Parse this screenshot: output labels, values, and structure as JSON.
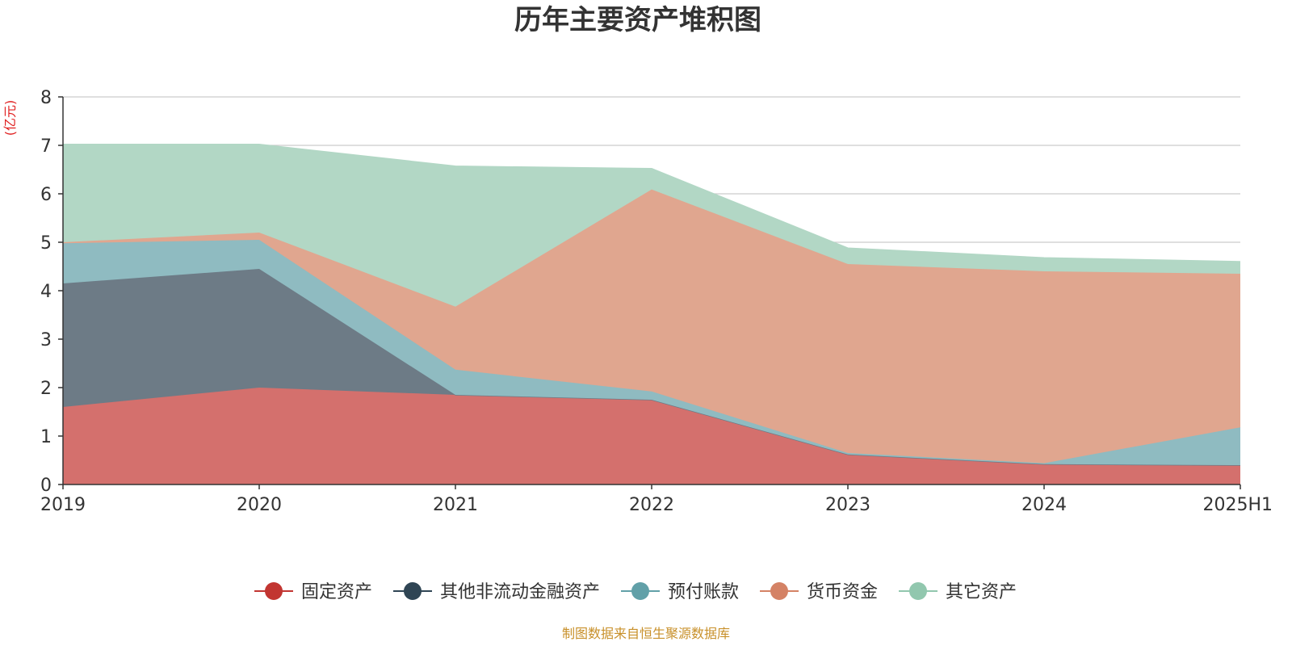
{
  "chart_data": {
    "type": "area",
    "stacked": true,
    "title": "历年主要资产堆积图",
    "ylabel": "(亿元)",
    "xlabel": "",
    "categories": [
      "2019",
      "2020",
      "2021",
      "2022",
      "2023",
      "2024",
      "2025H1"
    ],
    "ylim": [
      0,
      8
    ],
    "yticks": [
      "0",
      "1",
      "2",
      "3",
      "4",
      "5",
      "6",
      "7",
      "8"
    ],
    "grid": true,
    "legend_position": "bottom",
    "series": [
      {
        "name": "固定资产",
        "color": "#c23531",
        "fill": "#d4706d",
        "values": [
          1.6,
          2.0,
          1.85,
          1.75,
          0.62,
          0.42,
          0.4
        ]
      },
      {
        "name": "其他非流动金融资产",
        "color": "#2f4554",
        "fill": "#6d7b86",
        "values": [
          2.55,
          2.45,
          0.0,
          0.0,
          0.0,
          0.0,
          0.0
        ]
      },
      {
        "name": "预付账款",
        "color": "#61a0a8",
        "fill": "#8fbbc1",
        "values": [
          0.83,
          0.6,
          0.52,
          0.17,
          0.03,
          0.02,
          0.78
        ]
      },
      {
        "name": "货币资金",
        "color": "#d48265",
        "fill": "#e0a68f",
        "values": [
          0.02,
          0.15,
          1.3,
          4.17,
          3.9,
          3.96,
          3.17
        ]
      },
      {
        "name": "其它资产",
        "color": "#91c7ae",
        "fill": "#b2d7c5",
        "values": [
          2.02,
          1.82,
          2.9,
          0.43,
          0.33,
          0.28,
          0.25
        ]
      }
    ]
  },
  "source_text": "制图数据来自恒生聚源数据库",
  "unit_color": "#e02020",
  "source_color": "#c8902a"
}
